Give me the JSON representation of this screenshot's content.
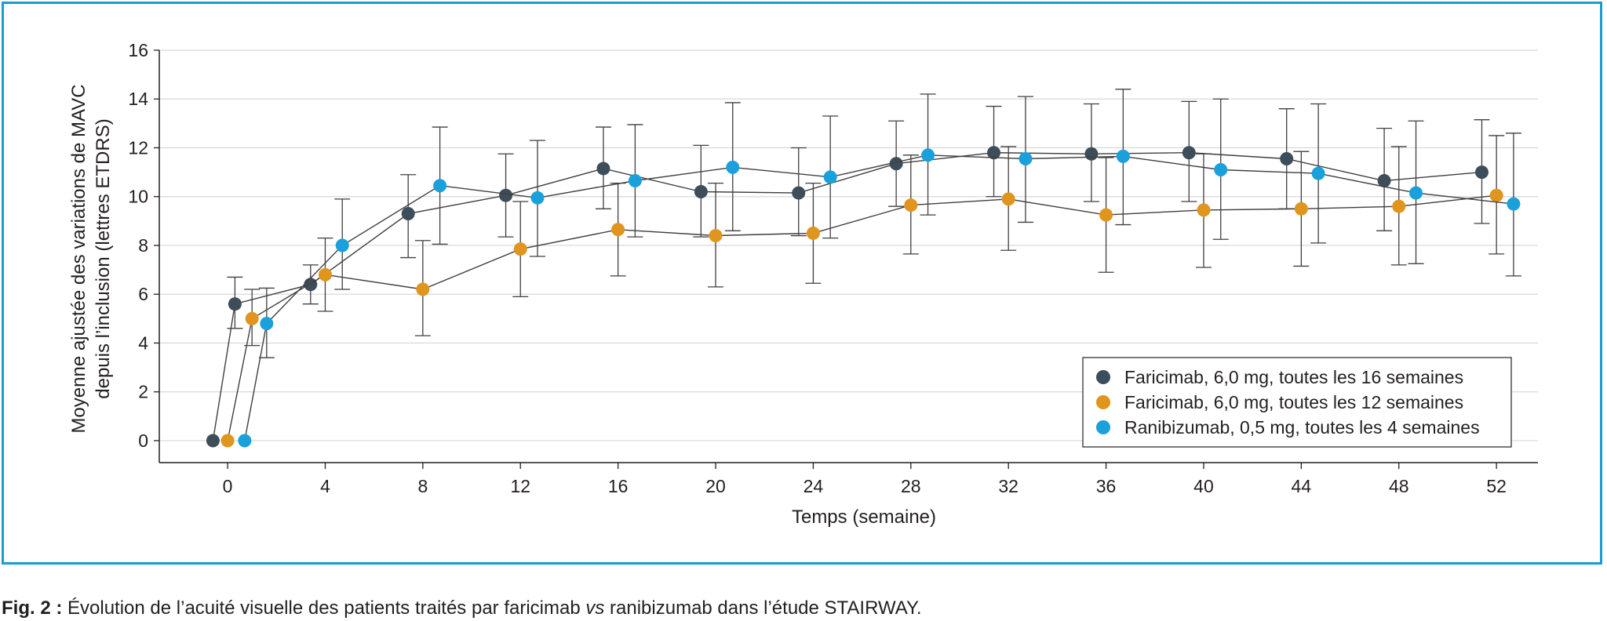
{
  "chart_data": {
    "type": "line",
    "xlabel": "Temps (semaine)",
    "ylabel_line1": "Moyenne ajustée des variations de MAVC",
    "ylabel_line2": "depuis l’inclusion (lettres ETDRS)",
    "x_ticks": [
      0,
      4,
      8,
      12,
      16,
      20,
      24,
      28,
      32,
      36,
      40,
      44,
      48,
      52
    ],
    "y_ticks": [
      0,
      2,
      4,
      6,
      8,
      10,
      12,
      14,
      16
    ],
    "xlim": [
      -2.8,
      53.7
    ],
    "ylim": [
      -0.9,
      16
    ],
    "grid": "horizontal",
    "legend_position": "lower-right",
    "series": [
      {
        "name": "Faricimab, 6,0 mg, toutes les 16 semaines",
        "color": "#3e4d5a",
        "points": [
          {
            "x": -0.6,
            "y": 0.0
          },
          {
            "x": 0.3,
            "y": 5.6,
            "lo": 4.6,
            "hi": 6.7
          },
          {
            "x": 3.4,
            "y": 6.4,
            "lo": 5.6,
            "hi": 7.2
          },
          {
            "x": 7.4,
            "y": 9.3,
            "lo": 7.5,
            "hi": 10.9
          },
          {
            "x": 11.4,
            "y": 10.05,
            "lo": 8.35,
            "hi": 11.75
          },
          {
            "x": 15.4,
            "y": 11.15,
            "lo": 9.5,
            "hi": 12.85
          },
          {
            "x": 19.4,
            "y": 10.2,
            "lo": 8.35,
            "hi": 12.1
          },
          {
            "x": 23.4,
            "y": 10.15,
            "lo": 8.4,
            "hi": 12.0
          },
          {
            "x": 27.4,
            "y": 11.35,
            "lo": 9.6,
            "hi": 13.1
          },
          {
            "x": 31.4,
            "y": 11.8,
            "lo": 10.0,
            "hi": 13.7
          },
          {
            "x": 35.4,
            "y": 11.75,
            "lo": 9.8,
            "hi": 13.8
          },
          {
            "x": 39.4,
            "y": 11.8,
            "lo": 9.8,
            "hi": 13.9
          },
          {
            "x": 43.4,
            "y": 11.55,
            "lo": 9.5,
            "hi": 13.6
          },
          {
            "x": 47.4,
            "y": 10.65,
            "lo": 8.6,
            "hi": 12.8
          },
          {
            "x": 51.4,
            "y": 11.0,
            "lo": 8.9,
            "hi": 13.15
          }
        ]
      },
      {
        "name": "Faricimab, 6,0 mg, toutes les 12 semaines",
        "color": "#e0951e",
        "points": [
          {
            "x": 0.0,
            "y": 0.0
          },
          {
            "x": 1.0,
            "y": 5.0,
            "lo": 3.9,
            "hi": 6.2
          },
          {
            "x": 4.0,
            "y": 6.8,
            "lo": 5.3,
            "hi": 8.3
          },
          {
            "x": 8.0,
            "y": 6.2,
            "lo": 4.3,
            "hi": 8.2
          },
          {
            "x": 12.0,
            "y": 7.85,
            "lo": 5.9,
            "hi": 9.8
          },
          {
            "x": 16.0,
            "y": 8.65,
            "lo": 6.75,
            "hi": 10.55
          },
          {
            "x": 20.0,
            "y": 8.4,
            "lo": 6.3,
            "hi": 10.55
          },
          {
            "x": 24.0,
            "y": 8.5,
            "lo": 6.45,
            "hi": 10.55
          },
          {
            "x": 28.0,
            "y": 9.65,
            "lo": 7.65,
            "hi": 11.7
          },
          {
            "x": 32.0,
            "y": 9.9,
            "lo": 7.8,
            "hi": 12.05
          },
          {
            "x": 36.0,
            "y": 9.25,
            "lo": 6.9,
            "hi": 11.6
          },
          {
            "x": 40.0,
            "y": 9.45,
            "lo": 7.1,
            "hi": 11.75
          },
          {
            "x": 44.0,
            "y": 9.5,
            "lo": 7.15,
            "hi": 11.85
          },
          {
            "x": 48.0,
            "y": 9.6,
            "lo": 7.2,
            "hi": 12.05
          },
          {
            "x": 52.0,
            "y": 10.05,
            "lo": 7.65,
            "hi": 12.5
          }
        ]
      },
      {
        "name": "Ranibizumab, 0,5 mg, toutes les 4 semaines",
        "color": "#1aa0db",
        "points": [
          {
            "x": 0.7,
            "y": 0.0
          },
          {
            "x": 1.6,
            "y": 4.8,
            "lo": 3.4,
            "hi": 6.25
          },
          {
            "x": 4.7,
            "y": 8.0,
            "lo": 6.2,
            "hi": 9.9
          },
          {
            "x": 8.7,
            "y": 10.45,
            "lo": 8.05,
            "hi": 12.85
          },
          {
            "x": 12.7,
            "y": 9.95,
            "lo": 7.55,
            "hi": 12.3
          },
          {
            "x": 16.7,
            "y": 10.65,
            "lo": 8.35,
            "hi": 12.95
          },
          {
            "x": 20.7,
            "y": 11.2,
            "lo": 8.6,
            "hi": 13.85
          },
          {
            "x": 24.7,
            "y": 10.8,
            "lo": 8.3,
            "hi": 13.3
          },
          {
            "x": 28.7,
            "y": 11.7,
            "lo": 9.25,
            "hi": 14.2
          },
          {
            "x": 32.7,
            "y": 11.55,
            "lo": 8.95,
            "hi": 14.1
          },
          {
            "x": 36.7,
            "y": 11.65,
            "lo": 8.85,
            "hi": 14.4
          },
          {
            "x": 40.7,
            "y": 11.1,
            "lo": 8.25,
            "hi": 14.0
          },
          {
            "x": 44.7,
            "y": 10.95,
            "lo": 8.1,
            "hi": 13.8
          },
          {
            "x": 48.7,
            "y": 10.15,
            "lo": 7.25,
            "hi": 13.1
          },
          {
            "x": 52.7,
            "y": 9.7,
            "lo": 6.75,
            "hi": 12.6
          }
        ]
      }
    ]
  },
  "caption": {
    "prefix": "Fig. 2 :",
    "text_before": " Évolution de l’acuité visuelle des patients traités par faricimab ",
    "italic": "vs",
    "text_after": " ranibizumab dans l’étude STAIRWAY."
  }
}
